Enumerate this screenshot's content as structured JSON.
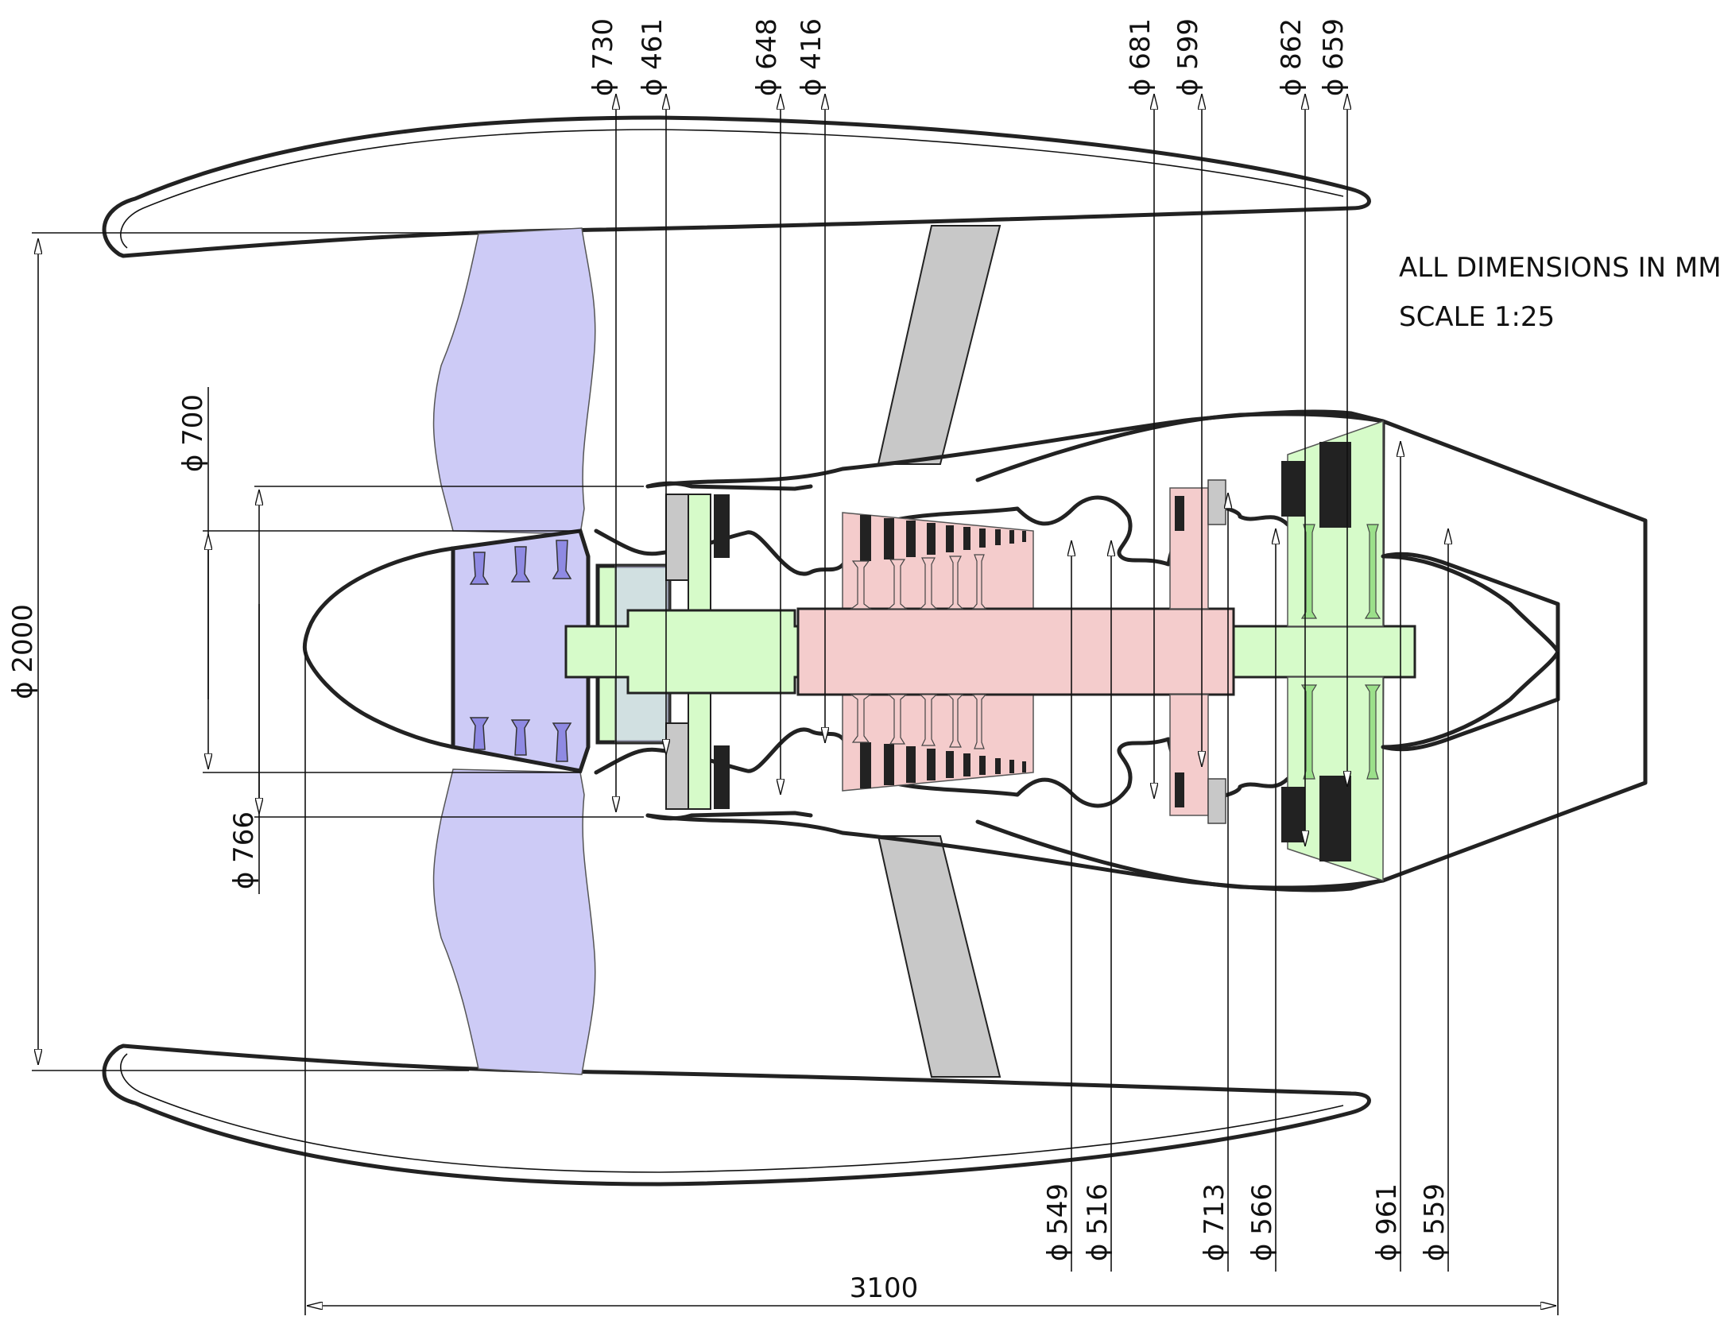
{
  "notes": {
    "units": "ALL DIMENSIONS IN MM",
    "scale": "SCALE 1:25"
  },
  "dimensions": {
    "overall_diameter": "ϕ 2000",
    "overall_length": "3100",
    "fan_hub_tip": "ϕ 700",
    "fan_hub_root": "ϕ 766",
    "top": [
      "ϕ 730",
      "ϕ 461",
      "ϕ 648",
      "ϕ 416",
      "ϕ 681",
      "ϕ 599",
      "ϕ 862",
      "ϕ 659"
    ],
    "bottom": [
      "ϕ 549",
      "ϕ 516",
      "ϕ 713",
      "ϕ 566",
      "ϕ 961",
      "ϕ 559"
    ]
  },
  "colors": {
    "fan": "#cdcbf6",
    "fan_dark": "#8f8ae3",
    "low_spool": "#d6fbc9",
    "low_spool_dark": "#9be08a",
    "high_spool": "#f4cccc",
    "strut": "#c8c8c8",
    "ink": "#222222"
  }
}
